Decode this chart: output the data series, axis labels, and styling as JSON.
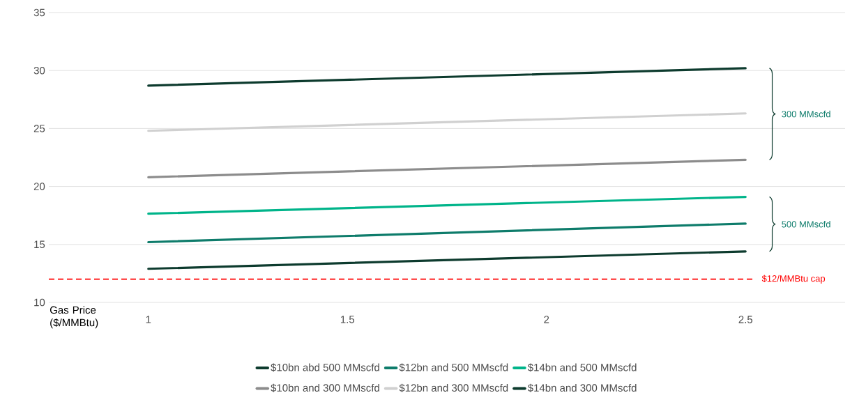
{
  "chart_data": {
    "type": "line",
    "xlabel": "Gas Price ($/MMBtu)",
    "x": [
      1,
      2.5
    ],
    "series": [
      {
        "name": "$10bn abd 500 MMscfd",
        "color": "#0d3b2e",
        "values": [
          12.9,
          14.4
        ]
      },
      {
        "name": "$12bn and 500 MMscfd",
        "color": "#0e7c6b",
        "values": [
          15.2,
          16.8
        ]
      },
      {
        "name": "$14bn and 500 MMscfd",
        "color": "#00b48a",
        "values": [
          17.65,
          19.1
        ]
      },
      {
        "name": "$10bn and 300 MMscfd",
        "color": "#8c8c8c",
        "values": [
          20.8,
          22.3
        ]
      },
      {
        "name": "$12bn and 300 MMscfd",
        "color": "#d0d0d0",
        "values": [
          24.8,
          26.3
        ]
      },
      {
        "name": "$14bn and 300 MMscfd",
        "color": "#0d3b2e",
        "values": [
          28.7,
          30.2
        ]
      }
    ],
    "xlim": [
      0.75,
      2.75
    ],
    "ylim": [
      10,
      35
    ],
    "xticks": [
      1,
      1.5,
      2,
      2.5
    ],
    "yticks": [
      10,
      15,
      20,
      25,
      30,
      35
    ],
    "grid": "y",
    "legend": "bottom",
    "marker": "none",
    "line_style": "solid",
    "ref_lines": [
      {
        "axis": "y",
        "value": 12,
        "label": "$12/MMBtu cap",
        "color": "#ff0000",
        "line_style": "dashed"
      }
    ],
    "annotations": [
      "500 MMscfd",
      "300 MMscfd"
    ]
  }
}
